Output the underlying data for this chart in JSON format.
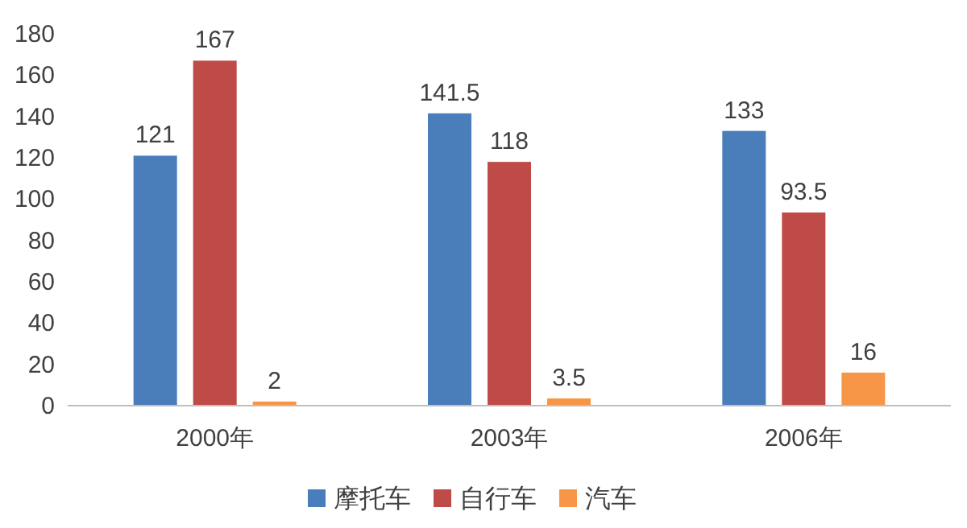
{
  "chart_data": {
    "type": "bar",
    "categories": [
      "2000年",
      "2003年",
      "2006年"
    ],
    "series": [
      {
        "name": "摩托车",
        "color": "#4a7ebb",
        "values": [
          121,
          141.5,
          133
        ]
      },
      {
        "name": "自行车",
        "color": "#be4b48",
        "values": [
          167,
          118,
          93.5
        ]
      },
      {
        "name": "汽车",
        "color": "#f79646",
        "values": [
          2,
          3.5,
          16
        ]
      }
    ],
    "ylim": [
      0,
      180
    ],
    "yticks": [
      0,
      20,
      40,
      60,
      80,
      100,
      120,
      140,
      160,
      180
    ],
    "data_labels": true,
    "legend": "bottom",
    "grid": false
  }
}
